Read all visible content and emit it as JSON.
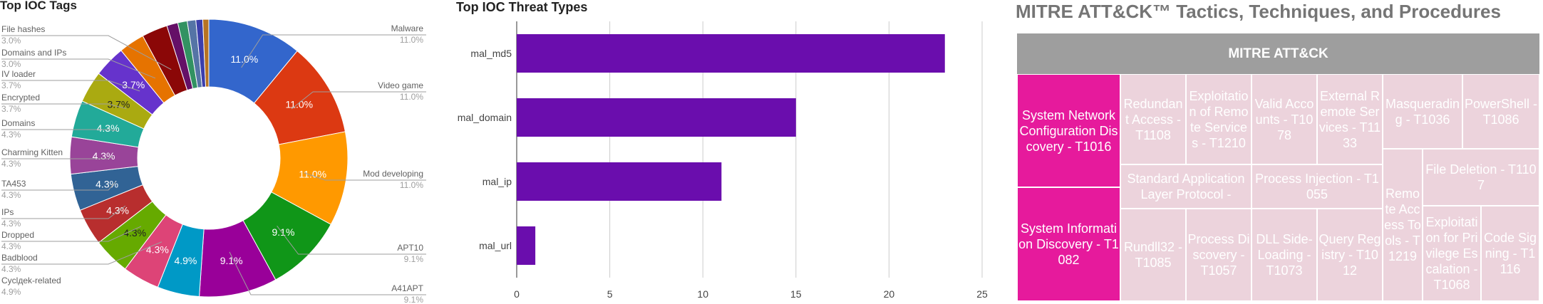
{
  "chart_data": [
    {
      "type": "pie",
      "title": "Top IOC Tags",
      "donut": true,
      "slices": [
        {
          "label": "Malware",
          "value": 11.0,
          "pct_label": "11.0%",
          "color": "#3366cc"
        },
        {
          "label": "Video game",
          "value": 11.0,
          "pct_label": "11.0%",
          "color": "#dc3912"
        },
        {
          "label": "Mod developing",
          "value": 11.0,
          "pct_label": "11.0%",
          "color": "#ff9900"
        },
        {
          "label": "APT10",
          "value": 9.1,
          "pct_label": "9.1%",
          "color": "#109618"
        },
        {
          "label": "A41APT",
          "value": 9.1,
          "pct_label": "9.1%",
          "color": "#990099"
        },
        {
          "label": "Cycldek-related",
          "value": 4.9,
          "pct_label": "4.9%",
          "color": "#0099c6"
        },
        {
          "label": "Badblood",
          "value": 4.3,
          "pct_label": "4.3%",
          "color": "#dd4477"
        },
        {
          "label": "Dropped",
          "value": 4.3,
          "pct_label": "4.3%",
          "color": "#66aa00"
        },
        {
          "label": "IPs",
          "value": 4.3,
          "pct_label": "4.3%",
          "color": "#b82e2e"
        },
        {
          "label": "TA453",
          "value": 4.3,
          "pct_label": "4.3%",
          "color": "#316395"
        },
        {
          "label": "Charming Kitten",
          "value": 4.3,
          "pct_label": "4.3%",
          "color": "#994499"
        },
        {
          "label": "Domains",
          "value": 4.3,
          "pct_label": "4.3%",
          "color": "#22aa99"
        },
        {
          "label": "Encrypted",
          "value": 3.7,
          "pct_label": "3.7%",
          "color": "#aaaa11"
        },
        {
          "label": "IV loader",
          "value": 3.7,
          "pct_label": "3.7%",
          "color": "#6633cc"
        },
        {
          "label": "Domains and IPs",
          "value": 3.0,
          "pct_label": "",
          "color": "#e67300"
        },
        {
          "label": "File hashes",
          "value": 3.0,
          "pct_label": "",
          "color": "#8b0707"
        },
        {
          "label": "",
          "value": 1.3,
          "pct_label": "",
          "color": "#651067"
        },
        {
          "label": "",
          "value": 1.1,
          "pct_label": "",
          "color": "#329262"
        },
        {
          "label": "",
          "value": 1.0,
          "pct_label": "",
          "color": "#5574a6"
        },
        {
          "label": "",
          "value": 0.8,
          "pct_label": "",
          "color": "#3b3eac"
        },
        {
          "label": "",
          "value": 0.7,
          "pct_label": "",
          "color": "#b77322"
        }
      ],
      "side_labels": [
        {
          "label": "Malware",
          "pct": "11.0%",
          "side": "right"
        },
        {
          "label": "Video game",
          "pct": "11.0%",
          "side": "right"
        },
        {
          "label": "Mod developing",
          "pct": "11.0%",
          "side": "right"
        },
        {
          "label": "APT10",
          "pct": "9.1%",
          "side": "right"
        },
        {
          "label": "A41APT",
          "pct": "9.1%",
          "side": "right"
        },
        {
          "label": "Cyclдek-related",
          "pct": "4.9%",
          "side": "left"
        },
        {
          "label": "Badblood",
          "pct": "4.3%",
          "side": "left"
        },
        {
          "label": "Dropped",
          "pct": "4.3%",
          "side": "left"
        },
        {
          "label": "IPs",
          "pct": "4.3%",
          "side": "left"
        },
        {
          "label": "TA453",
          "pct": "4.3%",
          "side": "left"
        },
        {
          "label": "Charming Kitten",
          "pct": "4.3%",
          "side": "left"
        },
        {
          "label": "Domains",
          "pct": "4.3%",
          "side": "left"
        },
        {
          "label": "Encrypted",
          "pct": "3.7%",
          "side": "left"
        },
        {
          "label": "IV loader",
          "pct": "3.7%",
          "side": "left"
        },
        {
          "label": "Domains and IPs",
          "pct": "3.0%",
          "side": "left"
        },
        {
          "label": "File hashes",
          "pct": "3.0%",
          "side": "left"
        }
      ]
    },
    {
      "type": "bar",
      "orientation": "horizontal",
      "title": "Top IOC Threat Types",
      "categories": [
        "mal_md5",
        "mal_domain",
        "mal_ip",
        "mal_url"
      ],
      "values": [
        23,
        15,
        11,
        1
      ],
      "xlim": [
        0,
        25
      ],
      "xticks": [
        "0",
        "5",
        "10",
        "15",
        "20",
        "25"
      ],
      "bar_color": "#6a0dad",
      "grid": true
    },
    {
      "type": "treemap",
      "title": "MITRE ATT&CK™ Tactics, Techniques, and Procedures",
      "root_label": "MITRE ATT&CK",
      "highlight_color": "#e61a9c",
      "base_color": "#ecd3dc",
      "header_color": "#9e9e9e",
      "items": [
        {
          "label": "System Network Configuration Discovery - T1016",
          "highlight": true
        },
        {
          "label": "System Information Discovery - T1082",
          "highlight": true
        },
        {
          "label": "Redundant Access - T1108",
          "highlight": false
        },
        {
          "label": "Exploitation of Remote Services - T1210",
          "highlight": false
        },
        {
          "label": "Valid Accounts - T1078",
          "highlight": false
        },
        {
          "label": "External Remote Services - T1133",
          "highlight": false
        },
        {
          "label": "Masquerading - T1036",
          "highlight": false
        },
        {
          "label": "PowerShell - T1086",
          "highlight": false
        },
        {
          "label": "Standard Application Layer Protocol -",
          "highlight": false
        },
        {
          "label": "Process Injection - T1055",
          "highlight": false
        },
        {
          "label": "Remote Access Tools - T1219",
          "highlight": false
        },
        {
          "label": "File Deletion - T1107",
          "highlight": false
        },
        {
          "label": "Rundll32 - T1085",
          "highlight": false
        },
        {
          "label": "Process Discovery - T1057",
          "highlight": false
        },
        {
          "label": "DLL Side-Loading - T1073",
          "highlight": false
        },
        {
          "label": "Query Registry - T1012",
          "highlight": false
        },
        {
          "label": "Exploitation for Privilege Escalation - T1068",
          "highlight": false
        },
        {
          "label": "Code Signing - T1116",
          "highlight": false
        }
      ]
    }
  ]
}
